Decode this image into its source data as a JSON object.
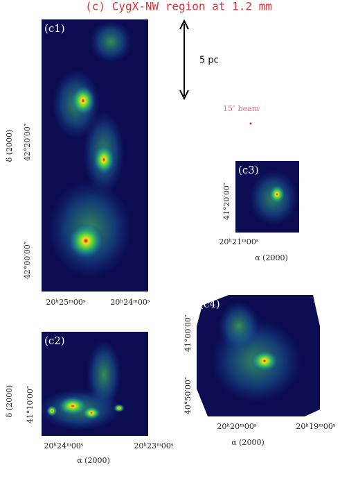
{
  "title": "(c) CygX-NW region at 1.2 mm",
  "scale_bar": "5 pc",
  "beam": "15″ beam",
  "panels": [
    {
      "label": "(c1)",
      "y_axis_label": "δ (2000)",
      "y_ticks": [
        "42°20′00″",
        "42°00′00″"
      ],
      "x_ticks": [
        "20ʰ25ᵐ00ˢ",
        "20ʰ24ᵐ00ˢ"
      ]
    },
    {
      "label": "(c2)",
      "y_axis_label": "δ (2000)",
      "y_ticks": [
        "41°10′00″"
      ],
      "x_ticks": [
        "20ʰ24ᵐ00ˢ",
        "20ʰ23ᵐ00ˢ"
      ],
      "x_axis_label": "α (2000)"
    },
    {
      "label": "(c3)",
      "y_ticks": [
        "41°20′00″"
      ],
      "x_ticks": [
        "20ʰ21ᵐ00ˢ"
      ],
      "x_axis_label": "α (2000)"
    },
    {
      "label": "(c4)",
      "y_ticks": [
        "41°00′00″",
        "40°50′00″"
      ],
      "x_ticks": [
        "20ʰ20ᵐ00ˢ",
        "20ʰ19ᵐ00ˢ"
      ],
      "x_axis_label": "α (2000)"
    }
  ]
}
